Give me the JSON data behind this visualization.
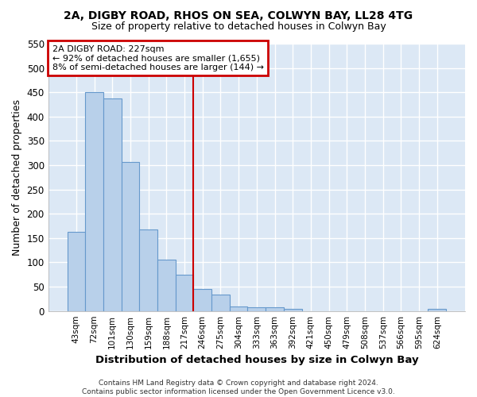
{
  "title1": "2A, DIGBY ROAD, RHOS ON SEA, COLWYN BAY, LL28 4TG",
  "title2": "Size of property relative to detached houses in Colwyn Bay",
  "xlabel": "Distribution of detached houses by size in Colwyn Bay",
  "ylabel": "Number of detached properties",
  "categories": [
    "43sqm",
    "72sqm",
    "101sqm",
    "130sqm",
    "159sqm",
    "188sqm",
    "217sqm",
    "246sqm",
    "275sqm",
    "304sqm",
    "333sqm",
    "363sqm",
    "392sqm",
    "421sqm",
    "450sqm",
    "479sqm",
    "508sqm",
    "537sqm",
    "566sqm",
    "595sqm",
    "624sqm"
  ],
  "values": [
    163,
    450,
    437,
    307,
    167,
    106,
    74,
    45,
    33,
    10,
    8,
    8,
    5,
    0,
    0,
    0,
    0,
    0,
    0,
    0,
    5
  ],
  "bar_color": "#b8d0ea",
  "bar_edge_color": "#6699cc",
  "highlight_index": 6,
  "highlight_line_color": "#cc0000",
  "annotation_text": "2A DIGBY ROAD: 227sqm\n← 92% of detached houses are smaller (1,655)\n8% of semi-detached houses are larger (144) →",
  "annotation_box_color": "#ffffff",
  "annotation_box_edge": "#cc0000",
  "footer": "Contains HM Land Registry data © Crown copyright and database right 2024.\nContains public sector information licensed under the Open Government Licence v3.0.",
  "fig_bg_color": "#ffffff",
  "plot_bg_color": "#dce8f5",
  "grid_color": "#ffffff",
  "ylim": [
    0,
    550
  ],
  "yticks": [
    0,
    50,
    100,
    150,
    200,
    250,
    300,
    350,
    400,
    450,
    500,
    550
  ]
}
